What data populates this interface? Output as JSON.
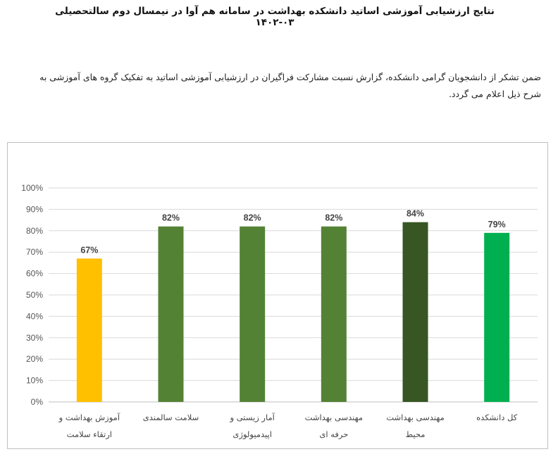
{
  "header": {
    "title": "نتایج ارزشیابی آموزشی اساتید دانشکده بهداشت در سامانه هم آوا در نیمسال دوم سالتحصیلی ۰۳-۱۴۰۲",
    "intro": "ضمن تشکر از دانشجویان گرامی دانشکده، گزارش نسبت مشارکت فراگیران در ارزشیابی آموزشی اساتید به تفکیک گروه های آموزشی به شرح ذیل اعلام می گردد."
  },
  "chart_data": {
    "type": "bar",
    "categories": [
      [
        "آموزش بهداشت و",
        "ارتقاء سلامت"
      ],
      [
        "سلامت سالمندی"
      ],
      [
        "آمار زیستی و",
        "اپیدمیولوژی"
      ],
      [
        "مهندسی بهداشت",
        "حرفه ای"
      ],
      [
        "مهندسی بهداشت",
        "محیط"
      ],
      [
        "کل دانشکده"
      ]
    ],
    "values": [
      67,
      82,
      82,
      82,
      84,
      79
    ],
    "data_labels": [
      "67%",
      "82%",
      "82%",
      "82%",
      "84%",
      "79%"
    ],
    "colors": [
      "#FFC000",
      "#548235",
      "#548235",
      "#548235",
      "#375623",
      "#00B050"
    ],
    "ylim": [
      0,
      100
    ],
    "yticks": [
      "0%",
      "10%",
      "20%",
      "30%",
      "40%",
      "50%",
      "60%",
      "70%",
      "80%",
      "90%",
      "100%"
    ],
    "grid": true,
    "title": "",
    "xlabel": "",
    "ylabel": ""
  }
}
